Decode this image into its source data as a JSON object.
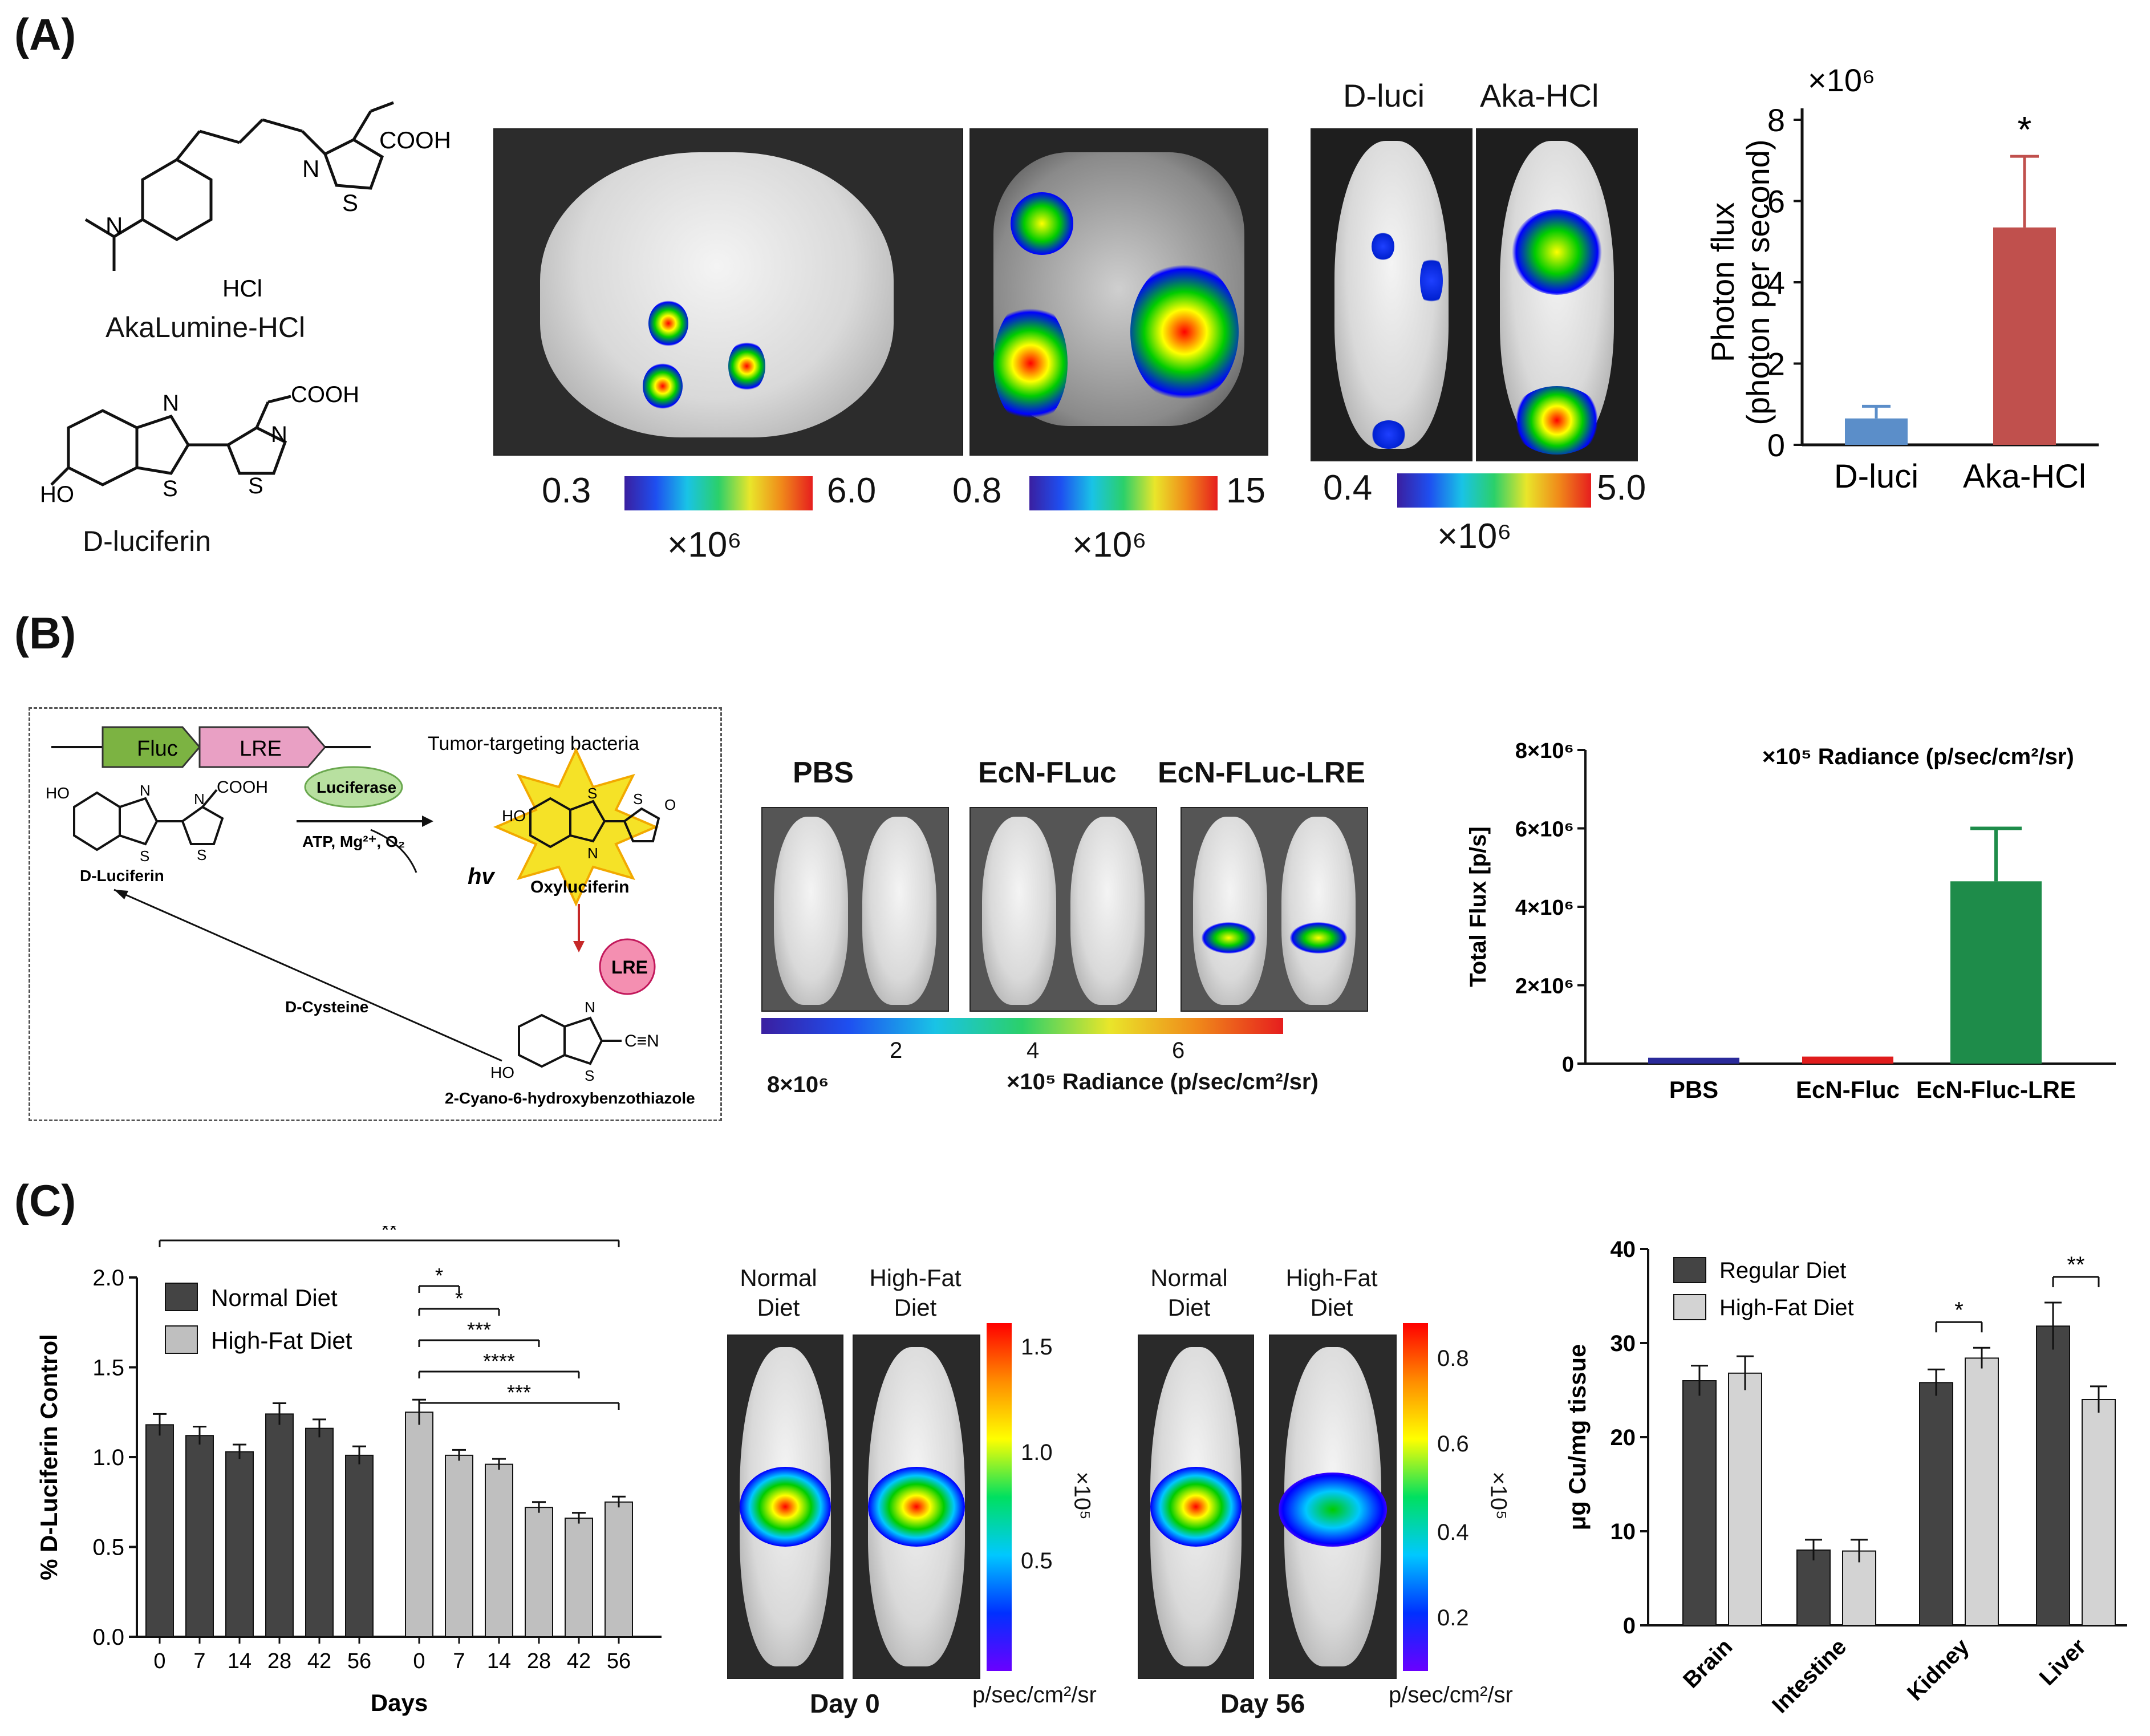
{
  "panels": {
    "a": "(A)",
    "b": "(B)",
    "c": "(C)"
  },
  "panel_a": {
    "akalumine_label": "AkaLumine-HCl",
    "akalumine_cooh": "COOH",
    "akalumine_hcl": "HCl",
    "akalumine_s": "S",
    "akalumine_n": "N",
    "akalumine_n2": "N",
    "dluciferin_label": "D-luciferin",
    "dluciferin_cooh": "COOH",
    "dluciferin_ho": "HO",
    "dluciferin_n1": "N",
    "dluciferin_n2": "N",
    "dluciferin_s1": "S",
    "dluciferin_s2": "S",
    "scale1": {
      "min": "0.3",
      "max": "6.0",
      "unit": "×10⁶"
    },
    "scale2": {
      "min": "0.8",
      "max": "15",
      "unit": "×10⁶"
    },
    "scale3": {
      "min": "0.4",
      "max": "5.0",
      "unit": "×10⁶"
    },
    "mouse_label_1": "D-luci",
    "mouse_label_2": "Aka-HCl"
  },
  "panel_b": {
    "gene1": "Fluc",
    "gene2": "LRE",
    "bacteria": "Tumor-targeting bacteria",
    "enzyme": "Luciferase",
    "conditions": "ATP, Mg²⁺, O₂",
    "hv": "hv",
    "oxy": "Oxyluciferin",
    "dluc": "D-Luciferin",
    "lre_circle": "LRE",
    "dcys": "D-Cysteine",
    "cyano": "2-Cyano-6-hydroxybenzothiazole",
    "cooh": "COOH",
    "ho1": "HO",
    "ho2": "HO",
    "ho3": "HO",
    "o": "O",
    "cn": "C≡N",
    "n1": "N",
    "n2": "N",
    "n3": "N",
    "n4": "N",
    "n5": "N",
    "s1": "S",
    "s2": "S",
    "s3": "S",
    "s4": "S",
    "s5": "S",
    "groups": [
      "PBS",
      "EcN-FLuc",
      "EcN-FLuc-LRE"
    ],
    "scale_ticks": [
      "2",
      "4",
      "6"
    ],
    "scale_left": "8×10⁶",
    "scale_unit": "×10⁵  Radiance (p/sec/cm²/sr)",
    "chart_letter": "b"
  },
  "panel_c": {
    "mice_group1": [
      "Normal Diet",
      "High-Fat Diet"
    ],
    "day1": "Day 0",
    "day2": "Day 56",
    "scale1_ticks": [
      "1.5",
      "1.0",
      "0.5"
    ],
    "scale2_ticks": [
      "0.8",
      "0.6",
      "0.4",
      "0.2"
    ],
    "scale_exp": "×10⁵",
    "scale_unit": "p/sec/cm²/sr"
  },
  "chart_data": [
    {
      "type": "bar",
      "ylabel": "Photon flux (photon per second)",
      "multiplier": "×10⁶",
      "categories": [
        "D-luci",
        "Aka-HCl"
      ],
      "values": [
        0.65,
        5.35
      ],
      "errors": [
        0.3,
        1.75
      ],
      "colors": [
        "#5b8ec9",
        "#c0504d"
      ],
      "ylim": [
        0,
        8
      ],
      "yticks": [
        "0",
        "2",
        "4",
        "6",
        "8"
      ],
      "annotations": [
        "*"
      ]
    },
    {
      "type": "bar",
      "ylabel": "Total Flux [p/s]",
      "title": "×10⁵  Radiance (p/sec/cm²/sr)",
      "categories": [
        "PBS",
        "EcN-Fluc",
        "EcN-Fluc-LRE"
      ],
      "values": [
        150000,
        180000,
        4650000
      ],
      "errors": [
        0,
        0,
        1350000
      ],
      "colors": [
        "#2a2a9a",
        "#e01c1c",
        "#1e8c4a"
      ],
      "ylim": [
        0,
        8000000
      ],
      "yticks": [
        "0",
        "2×10⁶",
        "4×10⁶",
        "6×10⁶",
        "8×10⁶"
      ]
    },
    {
      "type": "bar",
      "ylabel": "% D-Luciferin Control",
      "xlabel": "Days",
      "categories": [
        "0",
        "7",
        "14",
        "28",
        "42",
        "56"
      ],
      "series": [
        {
          "name": "Normal Diet",
          "values": [
            1.18,
            1.12,
            1.03,
            1.24,
            1.16,
            1.01
          ],
          "errors": [
            0.06,
            0.05,
            0.04,
            0.06,
            0.05,
            0.05
          ],
          "color": "#444444"
        },
        {
          "name": "High-Fat Diet",
          "values": [
            1.25,
            1.01,
            0.96,
            0.72,
            0.66,
            0.75
          ],
          "errors": [
            0.07,
            0.03,
            0.03,
            0.03,
            0.03,
            0.03
          ],
          "color": "#bfbfbf"
        }
      ],
      "ylim": [
        0,
        2.0
      ],
      "yticks": [
        "0.0",
        "0.5",
        "1.0",
        "1.5",
        "2.0"
      ],
      "significance": [
        "**",
        "*",
        "*",
        "***",
        "****",
        "***"
      ]
    },
    {
      "type": "bar",
      "ylabel": "μg Cu/mg tissue",
      "categories": [
        "Brain",
        "Intestine",
        "Kidney",
        "Liver"
      ],
      "series": [
        {
          "name": "Regular Diet",
          "values": [
            26,
            8,
            25.8,
            31.8
          ],
          "errors": [
            1.6,
            1.1,
            1.4,
            2.5
          ],
          "color": "#444444"
        },
        {
          "name": "High-Fat Diet",
          "values": [
            26.8,
            7.9,
            28.4,
            24
          ],
          "errors": [
            1.8,
            1.2,
            1.1,
            1.4
          ],
          "color": "#d3d3d3"
        }
      ],
      "ylim": [
        0,
        40
      ],
      "yticks": [
        "0",
        "10",
        "20",
        "30",
        "40"
      ],
      "significance": [
        "*",
        "**"
      ]
    }
  ]
}
